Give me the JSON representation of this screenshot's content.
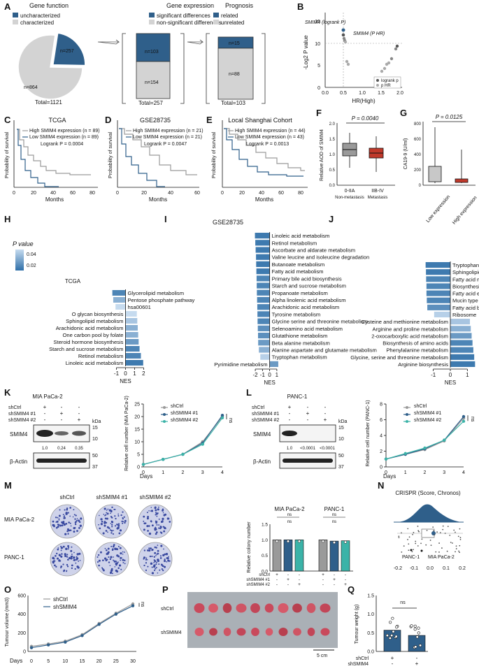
{
  "panels": {
    "A": {
      "letter": "A",
      "gene_function": {
        "title": "Gene function",
        "legend": [
          "uncharacterized",
          "characterized"
        ],
        "slices": [
          {
            "label": "n=257",
            "value": 257,
            "color": "#2f5f8a"
          },
          {
            "label": "n=864",
            "value": 864,
            "color": "#d3d3d3"
          }
        ],
        "total": "Total=1121"
      },
      "gene_expression": {
        "title": "Gene expression",
        "legend": [
          "significant differences",
          "non-significant differences"
        ],
        "segments": [
          {
            "label": "n=103",
            "value": 103,
            "color": "#2f5f8a"
          },
          {
            "label": "n=154",
            "value": 154,
            "color": "#d3d3d3"
          }
        ],
        "total": "Total=257"
      },
      "prognosis": {
        "title": "Prognosis",
        "legend": [
          "related",
          "unrelated"
        ],
        "segments": [
          {
            "label": "n=15",
            "value": 15,
            "color": "#2f5f8a"
          },
          {
            "label": "n=88",
            "value": 88,
            "color": "#d3d3d3"
          }
        ],
        "total": "Total=103"
      }
    },
    "B": {
      "letter": "B",
      "ylabel": "-Log2 P value",
      "xlabel": "HR(High)",
      "xticks": [
        "0.0",
        "0.5",
        "1.0",
        "1.5",
        "2.0"
      ],
      "yticks": [
        "0",
        "5",
        "10",
        "15"
      ],
      "annotations": [
        "SMIM4 (logrank P)",
        "SMIM4 (P HR)"
      ],
      "legend": [
        "logrank p",
        "p HR"
      ]
    },
    "C": {
      "letter": "C",
      "title": "TCGA",
      "high": "High SMIM4 expression (n = 89)",
      "low": "Low SMIM4 expression (n = 89)",
      "p": "Logrank P = 0.0004",
      "xticks": [
        "0",
        "20",
        "40",
        "60",
        "80"
      ],
      "xlabel": "Months",
      "ylabel": "Probability of survival",
      "yticks": [
        "0",
        "50",
        "100"
      ]
    },
    "D": {
      "letter": "D",
      "title": "GSE28735",
      "high": "High SMIM4 expression (n = 21)",
      "low": "Low SMIM4 expression (n = 21)",
      "p": "Logrank P = 0.0047",
      "xticks": [
        "0",
        "20",
        "40",
        "60"
      ],
      "xlabel": "Months",
      "ylabel": "Probability of survival",
      "yticks": [
        "0",
        "50",
        "100"
      ]
    },
    "E": {
      "letter": "E",
      "title": "Local Shanghai Cohort",
      "high": "High SMIM4 expression (n = 44)",
      "low": "Low SMIM4 expression (n = 43)",
      "p": "Logrank P = 0.0013",
      "xticks": [
        "0",
        "20",
        "40",
        "60",
        "80"
      ],
      "xlabel": "Months",
      "ylabel": "Probability of survival",
      "yticks": [
        "0",
        "50",
        "100"
      ]
    },
    "F": {
      "letter": "F",
      "p": "P = 0.0040",
      "ylabel": "Relative AOD of SMIM4",
      "yticks": [
        "0.0",
        "0.5",
        "1.0",
        "1.5",
        "2.0"
      ],
      "groups": [
        "0-IIA",
        "IIB-IV"
      ],
      "sub": [
        "Non-metastasis",
        "Metastasis"
      ]
    },
    "G": {
      "letter": "G",
      "p": "P = 0.0125",
      "ylabel": "CA19-9 (U/ml)",
      "yticks": [
        "0",
        "200",
        "400",
        "600",
        "800"
      ],
      "groups": [
        "Low expression",
        "High expression"
      ]
    },
    "H": {
      "letter": "H",
      "scale_title": "P value",
      "scale_ticks": [
        "0.04",
        "0.02"
      ],
      "title": "TCGA",
      "xlabel": "NES",
      "xticks": [
        "-1",
        "0",
        "1",
        "2"
      ]
    },
    "I": {
      "letter": "I",
      "title": "GSE28735",
      "xlabel": "NES",
      "xticks": [
        "-2",
        "-1",
        "0",
        "1"
      ]
    },
    "J": {
      "letter": "J",
      "xlabel": "NES",
      "xticks": [
        "-1",
        "0",
        "1"
      ]
    },
    "K": {
      "letter": "K",
      "cell": "MIA PaCa-2",
      "rows": [
        "shCtrl",
        "shSMIM4 #1",
        "shSMIM4 #2"
      ],
      "signs": [
        [
          "+",
          "-",
          "-"
        ],
        [
          "-",
          "+",
          "-"
        ],
        [
          "-",
          "-",
          "+"
        ]
      ],
      "kda": "kDa",
      "protein1": "SMIM4",
      "protein2": "β-Actin",
      "mw1": [
        "15",
        "10"
      ],
      "mw2": [
        "50",
        "37"
      ],
      "quant": [
        "1.0",
        "0.24",
        "0.35"
      ]
    },
    "L": {
      "letter": "L",
      "cell": "PANC-1",
      "rows": [
        "shCtrl",
        "shSMIM4 #1",
        "shSMIM4 #2"
      ],
      "signs": [
        [
          "+",
          "-",
          "-"
        ],
        [
          "-",
          "+",
          "-"
        ],
        [
          "-",
          "-",
          "+"
        ]
      ],
      "kda": "kDa",
      "protein1": "SMIM4",
      "protein2": "β-Actin",
      "mw1": [
        "15",
        "10"
      ],
      "mw2": [
        "50",
        "37"
      ],
      "quant": [
        "1.0",
        "<0.0001",
        "<0.0001"
      ]
    },
    "M": {
      "letter": "M",
      "cols": [
        "shCtrl",
        "shSMIM4 #1",
        "shSMIM4 #2"
      ],
      "rows": [
        "MIA PaCa-2",
        "PANC-1"
      ],
      "bar_titles": [
        "MIA PaCa-2",
        "PANC-1"
      ],
      "ylabel": "Relative colony number",
      "yticks": [
        "0.0",
        "0.5",
        "1.0",
        "1.5"
      ],
      "ns": "ns",
      "legend_rows": [
        "shCtrl",
        "shSMIM4 #1",
        "shSMIM4 #2"
      ]
    },
    "N": {
      "letter": "N",
      "title": "CRISPR (Score, Chronos)",
      "xticks": [
        "-0.2",
        "-0.1",
        "0.0",
        "0.1",
        "0.2"
      ],
      "labels": [
        "PANC-1",
        "MIA PaCa-2"
      ]
    },
    "O": {
      "letter": "O",
      "ylabel": "Tumour volume (mm3)",
      "xlabel": "Days",
      "xticks": [
        "0",
        "5",
        "10",
        "15",
        "20",
        "25",
        "30"
      ],
      "yticks": [
        "0",
        "200",
        "400",
        "600"
      ],
      "legend": [
        "shCtrl",
        "shSMIM4"
      ],
      "ns": "ns"
    },
    "P": {
      "letter": "P",
      "rows": [
        "shCtrl",
        "shSMIM4"
      ],
      "scale": "5 cm"
    },
    "Q": {
      "letter": "Q",
      "ylabel": "Tumour weight (g)",
      "yticks": [
        "0.0",
        "0.5",
        "1.0",
        "1.5"
      ],
      "ns": "ns",
      "rows": [
        "shCtrl",
        "shSMIM4"
      ],
      "signs": [
        [
          "+",
          "-"
        ],
        [
          "-",
          "+"
        ]
      ]
    }
  },
  "growth_panels": {
    "K": {
      "ylabel": "Relative cell number (MIA PaCa-2)",
      "xlabel": "Days",
      "xticks": [
        "0",
        "1",
        "2",
        "3",
        "4"
      ],
      "yticks": [
        "0",
        "5",
        "10",
        "15",
        "20",
        "25"
      ],
      "legend": [
        "shCtrl",
        "shSMIM4 #1",
        "shSMIM4 #2"
      ],
      "ns": "ns"
    },
    "L": {
      "ylabel": "Relative cell number (PANC-1)",
      "xlabel": "Days",
      "xticks": [
        "0",
        "1",
        "2",
        "3",
        "4"
      ],
      "yticks": [
        "0",
        "2",
        "4",
        "6",
        "8"
      ],
      "legend": [
        "shCtrl",
        "shSMIM4 #1",
        "shSMIM4 #2"
      ],
      "ns": "ns"
    }
  },
  "colors": {
    "blue": "#2f5f8a",
    "grey": "#9a9a9a",
    "teal": "#3bb3a8",
    "red": "#c0392b",
    "light": "#d3d3d3"
  },
  "chart_data": [
    {
      "type": "bar",
      "id": "H",
      "title": "TCGA",
      "xlabel": "NES",
      "xlim": [
        -1.5,
        2.2
      ],
      "categories": [
        "Glycerolipid metabolism",
        "Pentose phosphate pathway",
        "hsa00601",
        "O glycan biosynthesis",
        "Sphingolipid metabolism",
        "Arachidonic acid metabolism",
        "One carbon pool by folate",
        "Steroid hormone biosynthesis",
        "Starch and sucrose metabolism",
        "Retinol metabolism",
        "Linoleic acid metabolism"
      ],
      "values": [
        -1.45,
        -1.35,
        -1.1,
        1.25,
        1.3,
        1.35,
        1.4,
        1.45,
        1.55,
        1.7,
        1.95
      ],
      "pvalues": [
        0.01,
        0.03,
        0.05,
        0.05,
        0.04,
        0.03,
        0.03,
        0.02,
        0.01,
        0.01,
        0.005
      ]
    },
    {
      "type": "bar",
      "id": "I",
      "title": "GSE28735",
      "xlabel": "NES",
      "xlim": [
        -2.3,
        1.4
      ],
      "categories": [
        "Linoleic acid metabolism",
        "Retinol metabolism",
        "Ascorbate and aldarate metabolism",
        "Valine leucine and isoleucine degradation",
        "Butanoate metabolism",
        "Fatty acid metabolism",
        "Primary bile acid biosynthesis",
        "Starch and sucrose metabolism",
        "Propanoate metabolism",
        "Alpha linolenic acid metabolism",
        "Arachidonic acid metabolism",
        "Tyrosine metabolism",
        "Glycine serine and threonine metabolism",
        "Selenoamino acid metabolism",
        "Glutathione metabolism",
        "Beta alanine metabolism",
        "Alanine aspartate and glutamate metabolism",
        "Tryptophan metabolism",
        "Pyrimidine metabolism"
      ],
      "values": [
        -2.05,
        -2.0,
        -1.95,
        -1.9,
        -1.88,
        -1.85,
        -1.82,
        -1.8,
        -1.78,
        -1.75,
        -1.72,
        -1.7,
        -1.68,
        -1.65,
        -1.62,
        -1.6,
        -1.5,
        -1.3,
        1.2
      ],
      "pvalues": [
        0.005,
        0.005,
        0.005,
        0.005,
        0.005,
        0.005,
        0.01,
        0.01,
        0.01,
        0.01,
        0.01,
        0.01,
        0.01,
        0.015,
        0.015,
        0.02,
        0.03,
        0.045,
        0.02
      ]
    },
    {
      "type": "bar",
      "id": "J",
      "xlabel": "NES",
      "xlim": [
        -1.6,
        1.6
      ],
      "categories": [
        "Tryptophan metabolism",
        "Sphingolipid metabolism",
        "Fatty acid metabolism",
        "Biosynthesis of unsaturated fatty acids",
        "Fatty acid elongation",
        "Mucin type o-glycan biosynthesis",
        "Fatty acid biosynthesis",
        "Ribosome",
        "Cysteine and methionine metabolism",
        "Arginine and proline metabolism",
        "2-oxocarboxylic acid metabolism",
        "Biosynthesis of amino acids",
        "Phenylalanine metabolism",
        "Glycine, serine and threonine metabolism",
        "Arginine biosynthesis"
      ],
      "values": [
        -1.45,
        -1.43,
        -1.42,
        -1.4,
        -1.4,
        -1.38,
        -1.35,
        -0.95,
        1.15,
        1.2,
        1.25,
        1.3,
        1.35,
        1.4,
        1.45
      ],
      "pvalues": [
        0.005,
        0.005,
        0.01,
        0.01,
        0.01,
        0.01,
        0.015,
        0.045,
        0.04,
        0.03,
        0.02,
        0.01,
        0.01,
        0.005,
        0.005
      ]
    },
    {
      "type": "line",
      "id": "K-growth",
      "x": [
        0,
        1,
        2,
        3,
        4
      ],
      "ylim": [
        0,
        25
      ],
      "series": [
        {
          "name": "shCtrl",
          "values": [
            1,
            3,
            5,
            10,
            20
          ],
          "color": "#9a9a9a"
        },
        {
          "name": "shSMIM4 #1",
          "values": [
            1,
            3,
            5,
            9.5,
            20.5
          ],
          "color": "#2f5f8a"
        },
        {
          "name": "shSMIM4 #2",
          "values": [
            1,
            3,
            5,
            9,
            19.5
          ],
          "color": "#3bb3a8"
        }
      ]
    },
    {
      "type": "line",
      "id": "L-growth",
      "x": [
        0,
        1,
        2,
        3,
        4
      ],
      "ylim": [
        0,
        8
      ],
      "series": [
        {
          "name": "shCtrl",
          "values": [
            1,
            1.6,
            2.2,
            3.3,
            6.2
          ],
          "color": "#9a9a9a"
        },
        {
          "name": "shSMIM4 #1",
          "values": [
            1,
            1.6,
            2.3,
            3.4,
            6.4
          ],
          "color": "#2f5f8a"
        },
        {
          "name": "shSMIM4 #2",
          "values": [
            1,
            1.7,
            2.4,
            3.4,
            5.8
          ],
          "color": "#3bb3a8"
        }
      ]
    },
    {
      "type": "bar",
      "id": "M-bars",
      "ylim": [
        0,
        1.5
      ],
      "categories": [
        "MIA PaCa-2 shCtrl",
        "MIA PaCa-2 shSMIM4 #1",
        "MIA PaCa-2 shSMIM4 #2",
        "PANC-1 shCtrl",
        "PANC-1 shSMIM4 #1",
        "PANC-1 shSMIM4 #2"
      ],
      "values": [
        1.0,
        1.0,
        1.0,
        1.0,
        0.96,
        0.97
      ]
    },
    {
      "type": "line",
      "id": "O",
      "x": [
        0,
        5,
        10,
        15,
        20,
        25,
        30
      ],
      "ylim": [
        0,
        600
      ],
      "series": [
        {
          "name": "shCtrl",
          "values": [
            55,
            80,
            110,
            180,
            300,
            410,
            510
          ],
          "color": "#9a9a9a"
        },
        {
          "name": "shSMIM4",
          "values": [
            40,
            70,
            100,
            170,
            290,
            400,
            490
          ],
          "color": "#2f5f8a"
        }
      ]
    },
    {
      "type": "bar",
      "id": "Q",
      "ylim": [
        0,
        1.5
      ],
      "categories": [
        "shCtrl",
        "shSMIM4"
      ],
      "values": [
        0.57,
        0.43
      ]
    }
  ]
}
